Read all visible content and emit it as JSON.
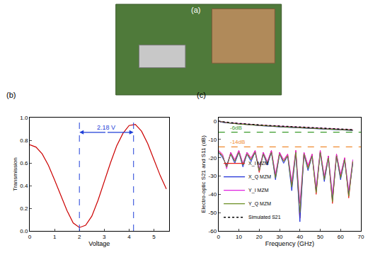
{
  "photo": {
    "label": "(a)"
  },
  "chart_data": [
    {
      "type": "line",
      "panel": "(b)",
      "x_label": "Voltage",
      "y_label": "Transmission",
      "x": [
        0,
        0.25,
        0.5,
        0.75,
        1.0,
        1.25,
        1.5,
        1.75,
        2.0,
        2.25,
        2.5,
        2.75,
        3.0,
        3.25,
        3.5,
        3.75,
        4.0,
        4.25,
        4.5,
        4.75,
        5.0,
        5.25,
        5.5
      ],
      "series": [
        {
          "color": "#cc0000",
          "values": [
            0.76,
            0.74,
            0.68,
            0.58,
            0.45,
            0.32,
            0.18,
            0.07,
            0.03,
            0.05,
            0.13,
            0.27,
            0.44,
            0.6,
            0.75,
            0.86,
            0.93,
            0.94,
            0.88,
            0.77,
            0.63,
            0.49,
            0.37
          ]
        }
      ],
      "xlim": [
        0,
        5.6
      ],
      "xticks": [
        0,
        1,
        2,
        3,
        4,
        5
      ],
      "ylim": [
        0,
        1.0
      ],
      "yticks": [
        {
          "value": 0,
          "label": "0.0"
        },
        {
          "value": 0.2,
          "label": "0.2"
        },
        {
          "value": 0.4,
          "label": "0.4"
        },
        {
          "value": 0.6,
          "label": "0.6"
        },
        {
          "value": 0.8,
          "label": "0.8"
        },
        {
          "value": 1.0,
          "label": "1.0"
        }
      ],
      "vlines": [
        2.0,
        4.18
      ],
      "annotations": [
        {
          "text": "2.18 V",
          "from": 2.0,
          "to": 4.18,
          "y": 0.87
        }
      ],
      "grid": false
    },
    {
      "type": "line",
      "panel": "(c)",
      "x_label": "Frequency (GHz)",
      "y_label": "Electro-optic S21 and S11 (dB)",
      "x": [
        0,
        2,
        4,
        6,
        8,
        10,
        12,
        14,
        16,
        18,
        20,
        22,
        24,
        26,
        28,
        30,
        32,
        34,
        36,
        38,
        40,
        42,
        44,
        46,
        48,
        50,
        52,
        54,
        56,
        58,
        60,
        62,
        64,
        66
      ],
      "series": [
        {
          "name": "X_I MZM",
          "color": "#e8231f",
          "values": [
            0,
            -0.5,
            -0.8,
            -1.0,
            -1.2,
            -1.4,
            -1.6,
            -1.8,
            -1.9,
            -2.0,
            -2.2,
            -2.3,
            -2.5,
            -2.6,
            -2.7,
            -2.9,
            -3.0,
            -3.1,
            -3.2,
            -3.4,
            -3.5,
            -3.6,
            -3.7,
            -3.8,
            -3.9,
            -4.0,
            -4.1,
            -4.2,
            -4.3,
            -4.4,
            -4.5,
            -4.6,
            -4.7,
            -4.8
          ],
          "s11": [
            -16,
            -19,
            -25,
            -17,
            -22,
            -16,
            -24,
            -17,
            -21,
            -16,
            -28,
            -17,
            -23,
            -16,
            -30,
            -17,
            -22,
            -18,
            -35,
            -16,
            -53,
            -17,
            -25,
            -18,
            -40,
            -16,
            -31,
            -19,
            -45,
            -18,
            -30,
            -20,
            -42,
            -22
          ]
        },
        {
          "name": "X_Q MZM",
          "color": "#1f2fd8",
          "values": [
            0,
            -0.6,
            -0.9,
            -1.1,
            -1.3,
            -1.5,
            -1.7,
            -1.9,
            -2.0,
            -2.2,
            -2.3,
            -2.5,
            -2.6,
            -2.8,
            -2.9,
            -3.0,
            -3.2,
            -3.3,
            -3.4,
            -3.5,
            -3.7,
            -3.8,
            -3.9,
            -4.0,
            -4.1,
            -4.2,
            -4.3,
            -4.4,
            -4.5,
            -4.6,
            -4.7,
            -4.8,
            -4.9,
            -5.0
          ],
          "s11": [
            -17,
            -20,
            -24,
            -18,
            -23,
            -17,
            -25,
            -18,
            -22,
            -17,
            -27,
            -18,
            -24,
            -17,
            -32,
            -18,
            -23,
            -19,
            -38,
            -17,
            -55,
            -18,
            -27,
            -19,
            -38,
            -17,
            -33,
            -20,
            -43,
            -19,
            -32,
            -21,
            -40,
            -23
          ]
        },
        {
          "name": "Y_I MZM",
          "color": "#e020e0",
          "values": [
            0,
            -0.4,
            -0.7,
            -0.9,
            -1.1,
            -1.3,
            -1.5,
            -1.7,
            -1.8,
            -2.0,
            -2.1,
            -2.3,
            -2.4,
            -2.5,
            -2.7,
            -2.8,
            -2.9,
            -3.0,
            -3.2,
            -3.3,
            -3.4,
            -3.5,
            -3.6,
            -3.7,
            -3.8,
            -3.9,
            -4.0,
            -4.1,
            -4.2,
            -4.3,
            -4.4,
            -4.5,
            -4.6,
            -4.7
          ],
          "s11": [
            -16,
            -18,
            -26,
            -17,
            -21,
            -16,
            -23,
            -17,
            -20,
            -16,
            -26,
            -17,
            -22,
            -16,
            -29,
            -17,
            -21,
            -18,
            -33,
            -16,
            -45,
            -17,
            -24,
            -18,
            -36,
            -16,
            -30,
            -19,
            -40,
            -18,
            -29,
            -20,
            -38,
            -21
          ]
        },
        {
          "name": "Y_Q MZM",
          "color": "#6b8e23",
          "values": [
            0,
            -0.5,
            -0.8,
            -1.0,
            -1.3,
            -1.5,
            -1.6,
            -1.8,
            -2.0,
            -2.1,
            -2.2,
            -2.4,
            -2.5,
            -2.7,
            -2.8,
            -2.9,
            -3.1,
            -3.2,
            -3.3,
            -3.4,
            -3.6,
            -3.7,
            -3.8,
            -3.9,
            -4.0,
            -4.1,
            -4.2,
            -4.3,
            -4.4,
            -4.5,
            -4.6,
            -4.7,
            -4.8,
            -4.9
          ],
          "s11": [
            -17,
            -19,
            -25,
            -18,
            -22,
            -17,
            -24,
            -18,
            -21,
            -17,
            -27,
            -18,
            -23,
            -17,
            -31,
            -18,
            -22,
            -19,
            -36,
            -17,
            -50,
            -18,
            -26,
            -19,
            -39,
            -17,
            -32,
            -20,
            -44,
            -19,
            -31,
            -21,
            -41,
            -22
          ]
        },
        {
          "name": "Simulated S21",
          "color": "#000000",
          "line_style": "dotted",
          "values": [
            0,
            -0.3,
            -0.6,
            -0.8,
            -1.0,
            -1.2,
            -1.4,
            -1.5,
            -1.7,
            -1.8,
            -2.0,
            -2.1,
            -2.3,
            -2.4,
            -2.5,
            -2.7,
            -2.8,
            -2.9,
            -3.0,
            -3.2,
            -3.3,
            -3.4,
            -3.5,
            -3.6,
            -3.7,
            -3.8,
            -3.9,
            -4.0,
            -4.1,
            -4.2,
            -4.3,
            -4.4,
            -4.5,
            -4.6
          ]
        }
      ],
      "xlim": [
        0,
        70
      ],
      "xticks": [
        0,
        10,
        20,
        30,
        40,
        50,
        60,
        70
      ],
      "ylim": [
        -60,
        2
      ],
      "yticks": [
        -60,
        -50,
        -40,
        -30,
        -20,
        -10,
        0
      ],
      "hlines": [
        {
          "value": -6,
          "label": "-6dB",
          "color": "#3a9a2a"
        },
        {
          "value": -14,
          "label": "-14dB",
          "color": "#f08a30"
        }
      ],
      "legend": "lower left",
      "grid": false
    }
  ]
}
